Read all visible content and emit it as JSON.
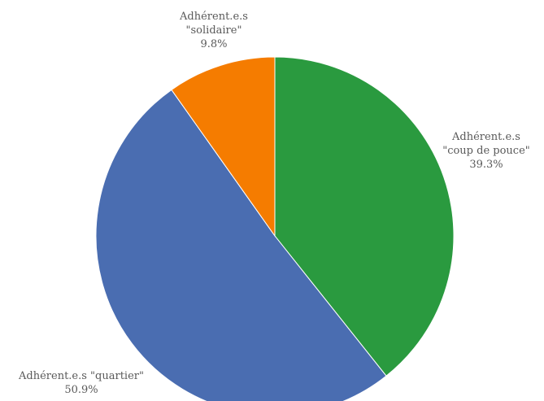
{
  "chart_data": {
    "type": "pie",
    "slices": [
      {
        "label_lines": [
          "Adhérent.e.s",
          "\"coup de pouce\""
        ],
        "percent_label": "39.3%",
        "value": 39.3,
        "color": "#2a9a3f"
      },
      {
        "label_lines": [
          "Adhérent.e.s \"quartier\""
        ],
        "percent_label": "50.9%",
        "value": 50.9,
        "color": "#4a6db1"
      },
      {
        "label_lines": [
          "Adhérent.e.s",
          "\"solidaire\""
        ],
        "percent_label": "9.8%",
        "value": 9.8,
        "color": "#f57c00"
      }
    ],
    "start_angle": "top",
    "direction": "clockwise",
    "legend": "none"
  }
}
